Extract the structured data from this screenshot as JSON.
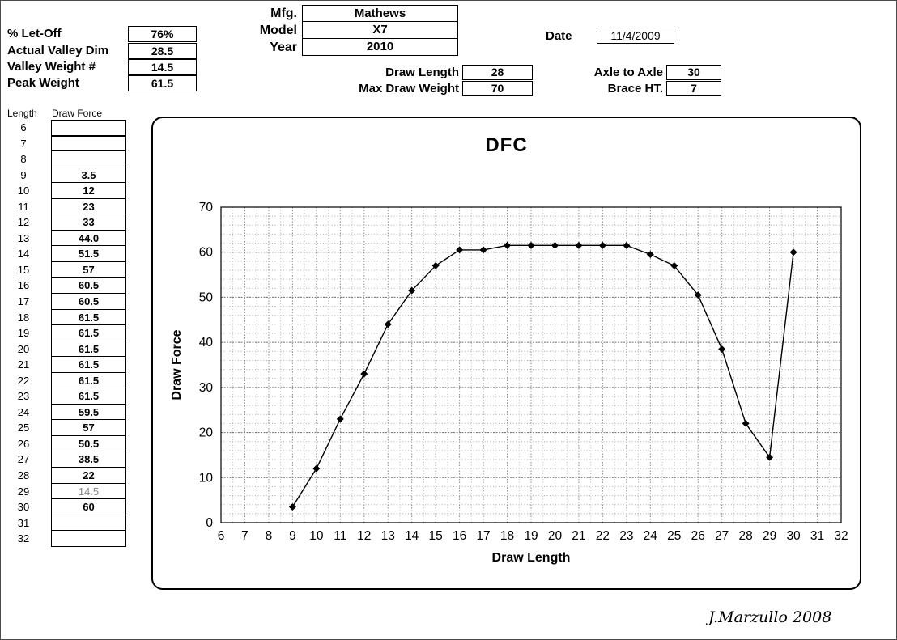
{
  "sheet": {
    "signature": "J.Marzullo 2008"
  },
  "specs_left": [
    {
      "label": "% Let-Off",
      "value": "76%"
    },
    {
      "label": "Actual Valley Dim",
      "value": "28.5"
    },
    {
      "label": "Valley Weight #",
      "value": "14.5"
    },
    {
      "label": "Peak Weight",
      "value": "61.5"
    }
  ],
  "bow_info": [
    {
      "label": "Mfg.",
      "value": "Mathews"
    },
    {
      "label": "Model",
      "value": "X7"
    },
    {
      "label": "Year",
      "value": "2010"
    }
  ],
  "draw_info": [
    {
      "label": "Draw Length",
      "value": "28"
    },
    {
      "label": "Max Draw Weight",
      "value": "70"
    }
  ],
  "date_info": {
    "label": "Date",
    "value": "11/4/2009"
  },
  "geometry_info": [
    {
      "label": "Axle to Axle",
      "value": "30"
    },
    {
      "label": "Brace HT.",
      "value": "7"
    }
  ],
  "data_table": {
    "headers": [
      "Length",
      "Draw Force"
    ],
    "rows": [
      {
        "length": "6",
        "force": ""
      },
      {
        "length": "7",
        "force": ""
      },
      {
        "length": "8",
        "force": ""
      },
      {
        "length": "9",
        "force": "3.5"
      },
      {
        "length": "10",
        "force": "12"
      },
      {
        "length": "11",
        "force": "23"
      },
      {
        "length": "12",
        "force": "33"
      },
      {
        "length": "13",
        "force": "44.0"
      },
      {
        "length": "14",
        "force": "51.5"
      },
      {
        "length": "15",
        "force": "57"
      },
      {
        "length": "16",
        "force": "60.5"
      },
      {
        "length": "17",
        "force": "60.5"
      },
      {
        "length": "18",
        "force": "61.5"
      },
      {
        "length": "19",
        "force": "61.5"
      },
      {
        "length": "20",
        "force": "61.5"
      },
      {
        "length": "21",
        "force": "61.5"
      },
      {
        "length": "22",
        "force": "61.5"
      },
      {
        "length": "23",
        "force": "61.5"
      },
      {
        "length": "24",
        "force": "59.5"
      },
      {
        "length": "25",
        "force": "57"
      },
      {
        "length": "26",
        "force": "50.5"
      },
      {
        "length": "27",
        "force": "38.5"
      },
      {
        "length": "28",
        "force": "22"
      },
      {
        "length": "29",
        "force": "14.5",
        "muted": true
      },
      {
        "length": "30",
        "force": "60"
      },
      {
        "length": "31",
        "force": ""
      },
      {
        "length": "32",
        "force": ""
      }
    ]
  },
  "chart_data": {
    "type": "line",
    "title": "DFC",
    "xlabel": "Draw Length",
    "ylabel": "Draw Force",
    "xlim": [
      6,
      32
    ],
    "ylim": [
      0,
      70
    ],
    "x_ticks": [
      6,
      7,
      8,
      9,
      10,
      11,
      12,
      13,
      14,
      15,
      16,
      17,
      18,
      19,
      20,
      21,
      22,
      23,
      24,
      25,
      26,
      27,
      28,
      29,
      30,
      31,
      32
    ],
    "y_ticks": [
      0,
      10,
      20,
      30,
      40,
      50,
      60,
      70
    ],
    "grid": "fine-dotted",
    "legend": "none",
    "marker": "diamond",
    "line_color": "#000000",
    "series": [
      {
        "name": "Draw Force",
        "x": [
          9,
          10,
          11,
          12,
          13,
          14,
          15,
          16,
          17,
          18,
          19,
          20,
          21,
          22,
          23,
          24,
          25,
          26,
          27,
          28,
          29,
          30
        ],
        "y": [
          3.5,
          12,
          23,
          33,
          44,
          51.5,
          57,
          60.5,
          60.5,
          61.5,
          61.5,
          61.5,
          61.5,
          61.5,
          61.5,
          59.5,
          57,
          50.5,
          38.5,
          22,
          14.5,
          60
        ]
      }
    ]
  }
}
